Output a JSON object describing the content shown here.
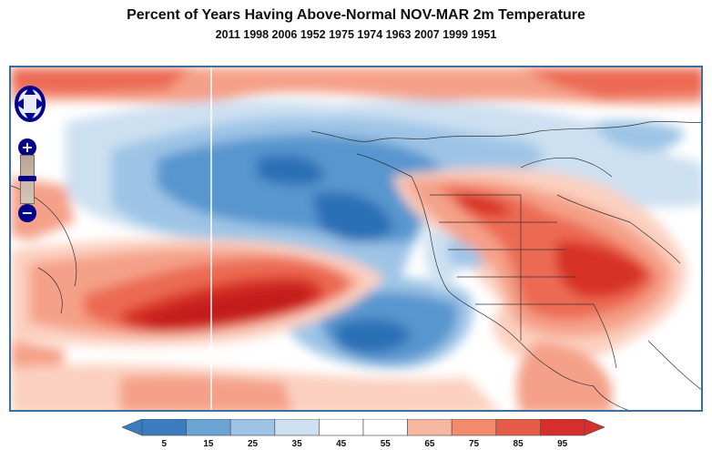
{
  "title": "Percent of Years Having Above-Normal NOV-MAR 2m Temperature",
  "subtitle": "2011 1998 2006 1952 1975 1974 1963 2007 1999 1951",
  "map": {
    "controls": {
      "pan": "pan-arrows-icon",
      "zoom_in": "+",
      "zoom_out": "−"
    },
    "slider_level": 0.45
  },
  "legend": {
    "labels": [
      "5",
      "15",
      "25",
      "35",
      "45",
      "55",
      "65",
      "75",
      "85",
      "95"
    ],
    "colors": [
      "#3b7cc0",
      "#6aa3d4",
      "#9dc4e6",
      "#cde0f1",
      "#ffffff",
      "#ffffff",
      "#f8b7a0",
      "#f28a6c",
      "#e65a48",
      "#d62d2d"
    ]
  },
  "palette": {
    "deep_blue": "#2c6fb5",
    "mid_blue": "#5896cf",
    "light_blue": "#9dc4e6",
    "pale_blue": "#cde0f1",
    "pale_red": "#fbd0c0",
    "light_red": "#f5a088",
    "mid_red": "#ec6a52",
    "deep_red": "#d73028",
    "darkest_red": "#c41a1f"
  }
}
